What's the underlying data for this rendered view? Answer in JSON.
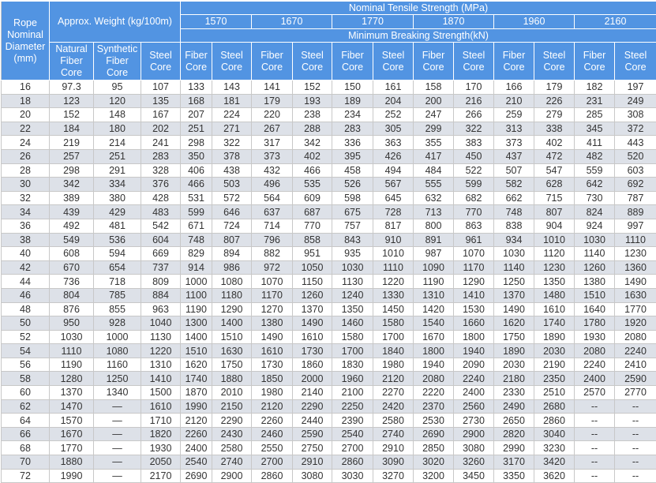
{
  "header": {
    "diameter": "Rope Nominal Diameter (mm)",
    "weight": "Approx. Weight (kg/100m)",
    "weight_cols": [
      "Natural Fiber Core",
      "Synthetic Fiber Core",
      "Steel Core"
    ],
    "tensile": "Nominal Tensile Strength  (MPa)",
    "grades": [
      "1570",
      "1670",
      "1770",
      "1870",
      "1960",
      "2160"
    ],
    "breaking": "Minimum Breaking Strength(kN)",
    "core_cols": [
      "Fiber Core",
      "Steel Core"
    ]
  },
  "colors": {
    "header_bg": "#5294e2",
    "alt_row": "#dde1e8",
    "border": "#c8c8c8"
  },
  "rows": [
    [
      "16",
      "97.3",
      "95",
      "107",
      "133",
      "143",
      "141",
      "152",
      "150",
      "161",
      "158",
      "170",
      "166",
      "179",
      "182",
      "197"
    ],
    [
      "18",
      "123",
      "120",
      "135",
      "168",
      "181",
      "179",
      "193",
      "189",
      "204",
      "200",
      "216",
      "210",
      "226",
      "231",
      "249"
    ],
    [
      "20",
      "152",
      "148",
      "167",
      "207",
      "224",
      "220",
      "238",
      "234",
      "252",
      "247",
      "266",
      "259",
      "279",
      "285",
      "308"
    ],
    [
      "22",
      "184",
      "180",
      "202",
      "251",
      "271",
      "267",
      "288",
      "283",
      "305",
      "299",
      "322",
      "313",
      "338",
      "345",
      "372"
    ],
    [
      "24",
      "219",
      "214",
      "241",
      "298",
      "322",
      "317",
      "342",
      "336",
      "363",
      "355",
      "383",
      "373",
      "402",
      "411",
      "443"
    ],
    [
      "26",
      "257",
      "251",
      "283",
      "350",
      "378",
      "373",
      "402",
      "395",
      "426",
      "417",
      "450",
      "437",
      "472",
      "482",
      "520"
    ],
    [
      "28",
      "298",
      "291",
      "328",
      "406",
      "438",
      "432",
      "466",
      "458",
      "494",
      "484",
      "522",
      "507",
      "547",
      "559",
      "603"
    ],
    [
      "30",
      "342",
      "334",
      "376",
      "466",
      "503",
      "496",
      "535",
      "526",
      "567",
      "555",
      "599",
      "582",
      "628",
      "642",
      "692"
    ],
    [
      "32",
      "389",
      "380",
      "428",
      "531",
      "572",
      "564",
      "609",
      "598",
      "645",
      "632",
      "682",
      "662",
      "715",
      "730",
      "787"
    ],
    [
      "34",
      "439",
      "429",
      "483",
      "599",
      "646",
      "637",
      "687",
      "675",
      "728",
      "713",
      "770",
      "748",
      "807",
      "824",
      "889"
    ],
    [
      "36",
      "492",
      "481",
      "542",
      "671",
      "724",
      "714",
      "770",
      "757",
      "817",
      "800",
      "863",
      "838",
      "904",
      "924",
      "997"
    ],
    [
      "38",
      "549",
      "536",
      "604",
      "748",
      "807",
      "796",
      "858",
      "843",
      "910",
      "891",
      "961",
      "934",
      "1010",
      "1030",
      "1110"
    ],
    [
      "40",
      "608",
      "594",
      "669",
      "829",
      "894",
      "882",
      "951",
      "935",
      "1010",
      "987",
      "1070",
      "1030",
      "1120",
      "1140",
      "1230"
    ],
    [
      "42",
      "670",
      "654",
      "737",
      "914",
      "986",
      "972",
      "1050",
      "1030",
      "1110",
      "1090",
      "1170",
      "1140",
      "1230",
      "1260",
      "1360"
    ],
    [
      "44",
      "736",
      "718",
      "809",
      "1000",
      "1080",
      "1070",
      "1150",
      "1130",
      "1220",
      "1190",
      "1290",
      "1250",
      "1350",
      "1380",
      "1490"
    ],
    [
      "46",
      "804",
      "785",
      "884",
      "1100",
      "1180",
      "1170",
      "1260",
      "1240",
      "1330",
      "1310",
      "1410",
      "1370",
      "1480",
      "1510",
      "1630"
    ],
    [
      "48",
      "876",
      "855",
      "963",
      "1190",
      "1290",
      "1270",
      "1370",
      "1350",
      "1450",
      "1420",
      "1530",
      "1490",
      "1610",
      "1640",
      "1770"
    ],
    [
      "50",
      "950",
      "928",
      "1040",
      "1300",
      "1400",
      "1380",
      "1490",
      "1460",
      "1580",
      "1540",
      "1660",
      "1620",
      "1740",
      "1780",
      "1920"
    ],
    [
      "52",
      "1030",
      "1000",
      "1130",
      "1400",
      "1510",
      "1490",
      "1610",
      "1580",
      "1700",
      "1670",
      "1800",
      "1750",
      "1890",
      "1930",
      "2080"
    ],
    [
      "54",
      "1110",
      "1080",
      "1220",
      "1510",
      "1630",
      "1610",
      "1730",
      "1700",
      "1840",
      "1800",
      "1940",
      "1890",
      "2030",
      "2080",
      "2240"
    ],
    [
      "56",
      "1190",
      "1160",
      "1310",
      "1620",
      "1750",
      "1730",
      "1860",
      "1830",
      "1980",
      "1940",
      "2090",
      "2030",
      "2190",
      "2240",
      "2410"
    ],
    [
      "58",
      "1280",
      "1250",
      "1410",
      "1740",
      "1880",
      "1850",
      "2000",
      "1960",
      "2120",
      "2080",
      "2240",
      "2180",
      "2350",
      "2400",
      "2590"
    ],
    [
      "60",
      "1370",
      "1340",
      "1500",
      "1870",
      "2010",
      "1980",
      "2140",
      "2100",
      "2270",
      "2220",
      "2400",
      "2330",
      "2510",
      "2570",
      "2770"
    ],
    [
      "62",
      "1470",
      "—",
      "1610",
      "1990",
      "2150",
      "2120",
      "2290",
      "2250",
      "2420",
      "2370",
      "2560",
      "2490",
      "2680",
      "--",
      "--"
    ],
    [
      "64",
      "1570",
      "—",
      "1710",
      "2120",
      "2290",
      "2260",
      "2440",
      "2390",
      "2580",
      "2530",
      "2730",
      "2650",
      "2860",
      "--",
      "--"
    ],
    [
      "66",
      "1670",
      "—",
      "1820",
      "2260",
      "2430",
      "2460",
      "2590",
      "2540",
      "2740",
      "2690",
      "2900",
      "2820",
      "3040",
      "--",
      "--"
    ],
    [
      "68",
      "1770",
      "—",
      "1930",
      "2400",
      "2580",
      "2550",
      "2750",
      "2700",
      "2910",
      "2850",
      "3080",
      "2990",
      "3230",
      "--",
      "--"
    ],
    [
      "70",
      "1880",
      "—",
      "2050",
      "2540",
      "2740",
      "2700",
      "2910",
      "2860",
      "3090",
      "3020",
      "3260",
      "3170",
      "3420",
      "--",
      "--"
    ],
    [
      "72",
      "1990",
      "—",
      "2170",
      "2690",
      "2900",
      "2860",
      "3080",
      "3030",
      "3270",
      "3200",
      "3450",
      "3350",
      "3620",
      "--",
      "--"
    ]
  ]
}
